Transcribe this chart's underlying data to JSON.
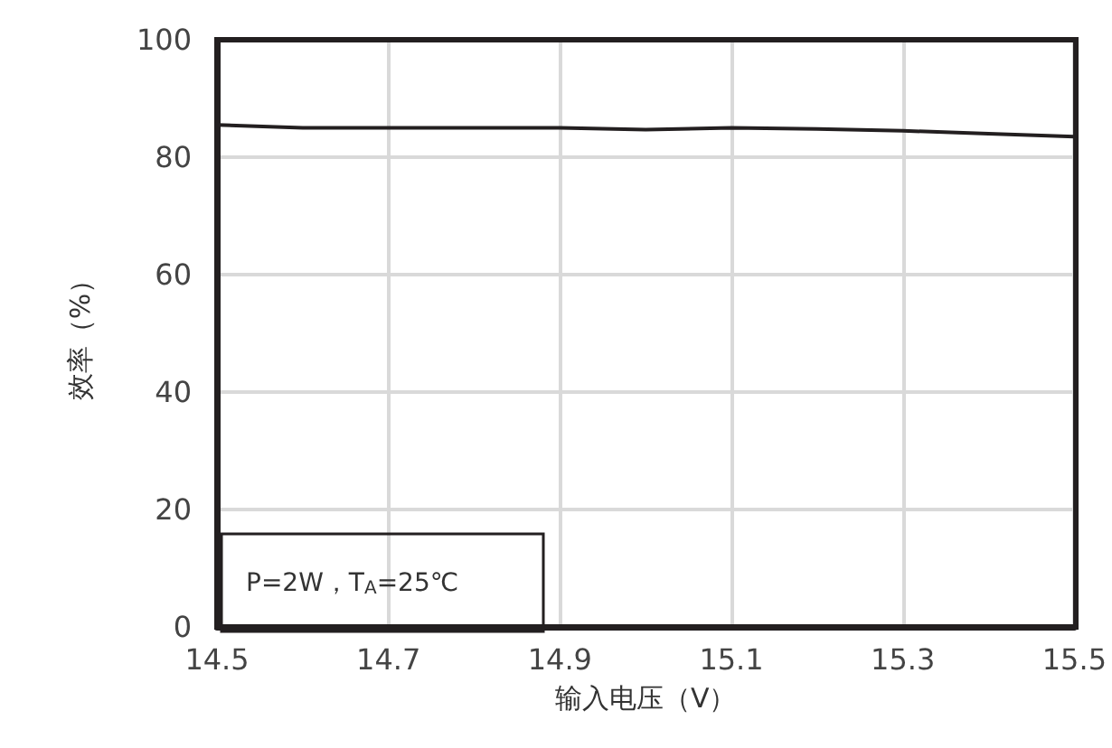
{
  "chart_data": {
    "type": "line",
    "xlabel": "输入电压（V）",
    "ylabel": "效率（%）",
    "x": [
      14.5,
      14.6,
      14.7,
      14.8,
      14.9,
      15.0,
      15.1,
      15.2,
      15.3,
      15.4,
      15.5
    ],
    "series": [
      {
        "color": "#231f20",
        "values": [
          85.5,
          85,
          85,
          85,
          85,
          84.7,
          85,
          84.8,
          84.5,
          84,
          83.5
        ]
      }
    ],
    "xlim": [
      14.5,
      15.5
    ],
    "xticks": [
      14.5,
      14.7,
      14.9,
      15.1,
      15.3,
      15.5
    ],
    "ylim": [
      0,
      100
    ],
    "yticks": [
      0,
      20,
      40,
      60,
      80,
      100
    ],
    "grid": true,
    "marker": "none",
    "line_style": "solid",
    "annotations": [
      "P=2W，T$_{A}$=25℃"
    ]
  }
}
